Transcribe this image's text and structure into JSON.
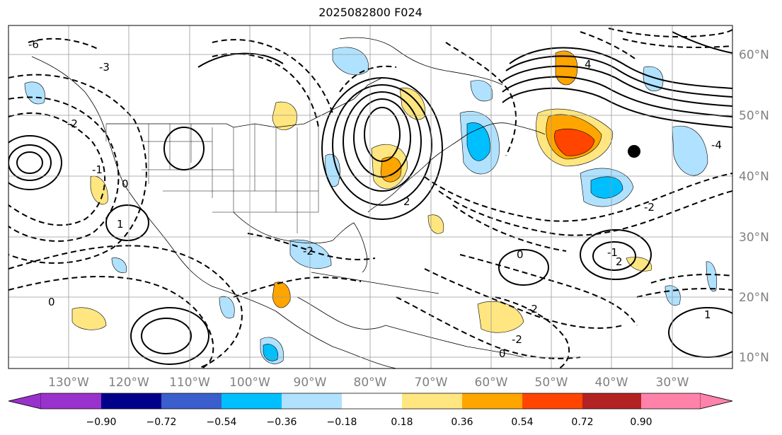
{
  "title": "2025082800 F024",
  "map": {
    "lon_labels": [
      "130°W",
      "120°W",
      "110°W",
      "100°W",
      "90°W",
      "80°W",
      "70°W",
      "60°W",
      "50°W",
      "40°W",
      "30°W"
    ],
    "lat_labels": [
      "60°N",
      "50°N",
      "40°N",
      "30°N",
      "20°N",
      "10°N"
    ]
  },
  "contour_labels": [
    "-6",
    "-3",
    "-2",
    "-1",
    "0",
    "1",
    "2",
    "4",
    "-2",
    "0",
    "-1",
    "2",
    "-4",
    "-2",
    "0",
    "-2",
    "1",
    "-2",
    "0"
  ],
  "colorbar": {
    "colors": [
      "#9932cc",
      "#00008b",
      "#3a5fcd",
      "#00bfff",
      "#b0e2ff",
      "#ffffff",
      "#ffe680",
      "#ffa500",
      "#ff4500",
      "#b22222",
      "#ff82ab"
    ],
    "ticks": [
      "−0.90",
      "−0.72",
      "−0.54",
      "−0.36",
      "−0.18",
      "0.18",
      "0.36",
      "0.54",
      "0.72",
      "0.90"
    ]
  }
}
